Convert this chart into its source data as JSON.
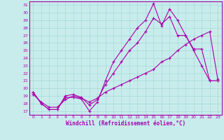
{
  "xlabel": "Windchill (Refroidissement éolien,°C)",
  "background_color": "#c8ecec",
  "grid_color": "#a8d8d8",
  "line_color": "#aa00aa",
  "xlim": [
    -0.5,
    23.5
  ],
  "ylim": [
    16.5,
    31.5
  ],
  "yticks": [
    17,
    18,
    19,
    20,
    21,
    22,
    23,
    24,
    25,
    26,
    27,
    28,
    29,
    30,
    31
  ],
  "xticks": [
    0,
    1,
    2,
    3,
    4,
    5,
    6,
    7,
    8,
    9,
    10,
    11,
    12,
    13,
    14,
    15,
    16,
    17,
    18,
    19,
    20,
    21,
    22,
    23
  ],
  "series1_x": [
    0,
    1,
    2,
    3,
    4,
    5,
    6,
    7,
    8,
    9,
    10,
    11,
    12,
    13,
    14,
    15,
    16,
    17,
    18,
    19,
    20,
    21,
    22,
    23
  ],
  "series1_y": [
    19.5,
    18.0,
    17.2,
    17.2,
    18.8,
    18.8,
    18.6,
    17.0,
    18.2,
    21.0,
    23.5,
    25.0,
    26.5,
    28.0,
    29.0,
    31.2,
    28.3,
    30.5,
    29.0,
    27.0,
    25.0,
    23.0,
    21.0,
    21.0
  ],
  "series2_x": [
    0,
    1,
    2,
    3,
    4,
    5,
    6,
    7,
    8,
    9,
    10,
    11,
    12,
    13,
    14,
    15,
    16,
    17,
    18,
    19,
    20,
    21,
    22,
    23
  ],
  "series2_y": [
    19.5,
    18.0,
    17.2,
    17.2,
    19.0,
    19.2,
    18.8,
    17.8,
    18.5,
    20.5,
    22.0,
    23.5,
    25.0,
    26.0,
    27.5,
    29.3,
    28.5,
    29.5,
    27.0,
    27.0,
    25.2,
    25.2,
    21.0,
    21.0
  ],
  "series3_x": [
    0,
    1,
    2,
    3,
    4,
    5,
    6,
    7,
    8,
    9,
    10,
    11,
    12,
    13,
    14,
    15,
    16,
    17,
    18,
    19,
    20,
    21,
    22,
    23
  ],
  "series3_y": [
    19.2,
    18.2,
    17.5,
    17.5,
    18.5,
    19.0,
    18.7,
    18.2,
    18.7,
    19.5,
    20.0,
    20.5,
    21.0,
    21.5,
    22.0,
    22.5,
    23.5,
    24.0,
    25.0,
    25.8,
    26.5,
    27.0,
    27.5,
    21.2
  ]
}
